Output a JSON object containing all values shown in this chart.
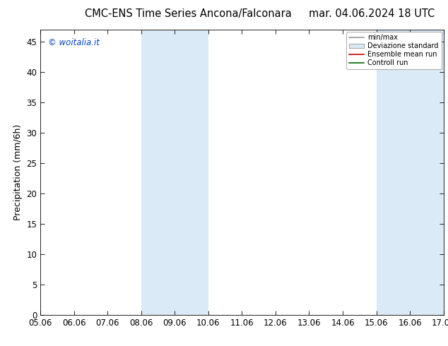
{
  "title_left": "CMC-ENS Time Series Ancona/Falconara",
  "title_right": "mar. 04.06.2024 18 UTC",
  "ylabel": "Precipitation (mm/6h)",
  "watermark": "© woitalia.it",
  "x_tick_labels": [
    "05.06",
    "06.06",
    "07.06",
    "08.06",
    "09.06",
    "10.06",
    "11.06",
    "12.06",
    "13.06",
    "14.06",
    "15.06",
    "16.06",
    "17.06"
  ],
  "x_tick_positions": [
    0,
    1,
    2,
    3,
    4,
    5,
    6,
    7,
    8,
    9,
    10,
    11,
    12
  ],
  "ylim": [
    0,
    47
  ],
  "yticks": [
    0,
    5,
    10,
    15,
    20,
    25,
    30,
    35,
    40,
    45
  ],
  "shaded_bands": [
    {
      "xmin": 3,
      "xmax": 5,
      "color": "#daeaf7"
    },
    {
      "xmin": 10,
      "xmax": 12,
      "color": "#daeaf7"
    }
  ],
  "legend_labels": [
    "min/max",
    "Deviazione standard",
    "Ensemble mean run",
    "Controll run"
  ],
  "legend_line_colors": [
    "#999999",
    "#cccccc",
    "#cc0000",
    "#006600"
  ],
  "background_color": "#ffffff",
  "plot_bg_color": "#ffffff",
  "title_fontsize": 10.5,
  "axis_label_fontsize": 9,
  "tick_fontsize": 8.5
}
